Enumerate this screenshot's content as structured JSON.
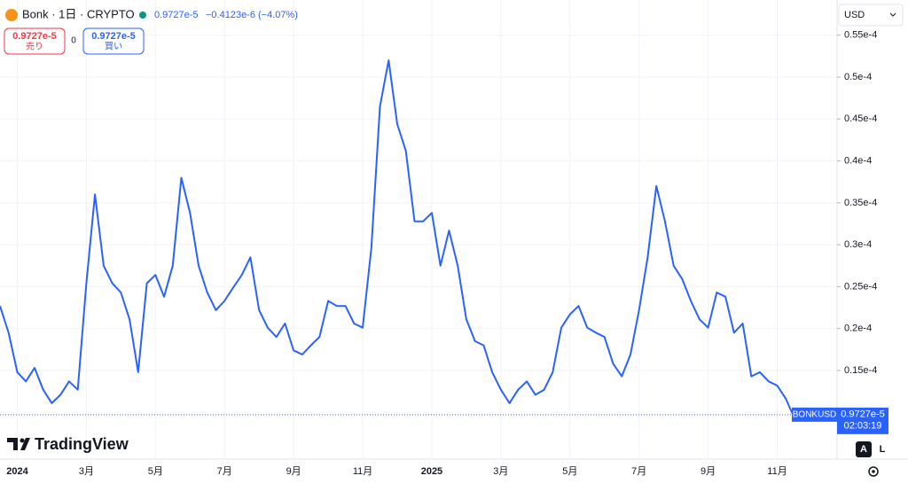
{
  "header": {
    "symbol": "Bonk · 1日 · CRYPTO",
    "price": "0.9727e-5",
    "change": "−0.4123e-6 (−4.07%)"
  },
  "trade": {
    "sell_price": "0.9727e-5",
    "sell_label": "売り",
    "spread": "0",
    "buy_price": "0.9727e-5",
    "buy_label": "買い"
  },
  "currency": "USD",
  "branding": "TradingView",
  "buttons": [
    "A",
    "L"
  ],
  "chart_data": {
    "type": "line",
    "categories": [
      null,
      null,
      "2024",
      null,
      null,
      null,
      null,
      null,
      null,
      null,
      "3月",
      null,
      null,
      null,
      null,
      null,
      null,
      null,
      "5月",
      null,
      null,
      null,
      null,
      null,
      null,
      null,
      "7月",
      null,
      null,
      null,
      null,
      null,
      null,
      null,
      "9月",
      null,
      null,
      null,
      null,
      null,
      null,
      null,
      "11月",
      null,
      null,
      null,
      null,
      null,
      null,
      null,
      "2025",
      null,
      null,
      null,
      null,
      null,
      null,
      null,
      "3月",
      null,
      null,
      null,
      null,
      null,
      null,
      null,
      "5月",
      null,
      null,
      null,
      null,
      null,
      null,
      null,
      "7月",
      null,
      null,
      null,
      null,
      null,
      null,
      null,
      "9月",
      null,
      null,
      null,
      null,
      null,
      null,
      null,
      "11月",
      null,
      null
    ],
    "series": [
      {
        "name": "BONKUSD",
        "color": "#2962ff",
        "values": [
          2.27e-05,
          1.95e-05,
          1.48e-05,
          1.37e-05,
          1.53e-05,
          1.27e-05,
          1.11e-05,
          1.21e-05,
          1.37e-05,
          1.27e-05,
          2.54e-05,
          3.6e-05,
          2.75e-05,
          2.54e-05,
          2.43e-05,
          2.11e-05,
          1.48e-05,
          2.54e-05,
          2.64e-05,
          2.38e-05,
          2.75e-05,
          3.8e-05,
          3.38e-05,
          2.75e-05,
          2.43e-05,
          2.22e-05,
          2.33e-05,
          2.49e-05,
          2.64e-05,
          2.85e-05,
          2.22e-05,
          2.01e-05,
          1.9e-05,
          2.06e-05,
          1.74e-05,
          1.69e-05,
          1.8e-05,
          1.9e-05,
          2.33e-05,
          2.27e-05,
          2.27e-05,
          2.06e-05,
          2.01e-05,
          2.96e-05,
          4.65e-05,
          5.2e-05,
          4.44e-05,
          4.12e-05,
          3.28e-05,
          3.28e-05,
          3.38e-05,
          2.75e-05,
          3.17e-05,
          2.75e-05,
          2.11e-05,
          1.85e-05,
          1.8e-05,
          1.48e-05,
          1.27e-05,
          1.11e-05,
          1.27e-05,
          1.37e-05,
          1.21e-05,
          1.27e-05,
          1.48e-05,
          2.01e-05,
          2.17e-05,
          2.27e-05,
          2.01e-05,
          1.95e-05,
          1.9e-05,
          1.58e-05,
          1.43e-05,
          1.69e-05,
          2.22e-05,
          2.85e-05,
          3.7e-05,
          3.28e-05,
          2.75e-05,
          2.59e-05,
          2.33e-05,
          2.11e-05,
          2.01e-05,
          2.43e-05,
          2.38e-05,
          1.95e-05,
          2.06e-05,
          1.43e-05,
          1.48e-05,
          1.37e-05,
          1.32e-05,
          1.16e-05,
          9.3e-06
        ]
      }
    ],
    "ylim": [
      4.74e-06,
      5.92e-05
    ],
    "yticks": [
      {
        "value": 1.5e-05,
        "label": "0.15e-4"
      },
      {
        "value": 2e-05,
        "label": "0.2e-4"
      },
      {
        "value": 2.5e-05,
        "label": "0.25e-4"
      },
      {
        "value": 3e-05,
        "label": "0.3e-4"
      },
      {
        "value": 3.5e-05,
        "label": "0.35e-4"
      },
      {
        "value": 4e-05,
        "label": "0.4e-4"
      },
      {
        "value": 4.5e-05,
        "label": "0.45e-4"
      },
      {
        "value": 5e-05,
        "label": "0.5e-4"
      },
      {
        "value": 5.5e-05,
        "label": "0.55e-4"
      }
    ],
    "grid": true,
    "last_price": {
      "value": 9.727e-06,
      "label": "0.9727e-5"
    },
    "countdown": "02:03:19"
  }
}
